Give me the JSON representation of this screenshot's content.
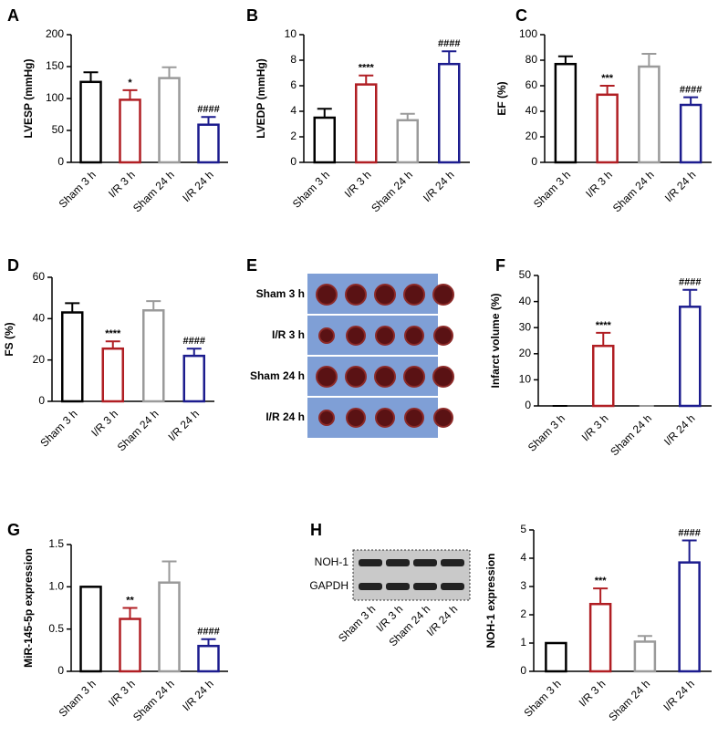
{
  "chart_data": [
    {
      "type": "bar",
      "panel": "A",
      "title": "LVESP (mmHg)",
      "categories": [
        "Sham 3 h",
        "I/R 3 h",
        "Sham 24 h",
        "I/R 24 h"
      ],
      "values": [
        126,
        98,
        132,
        59
      ],
      "errors": [
        15,
        15,
        17,
        12
      ],
      "value_annotations": [
        null,
        "*",
        null,
        "####"
      ],
      "colors": [
        "#000000",
        "#b01e23",
        "#9a9a9a",
        "#1c1c8e"
      ],
      "ylim": [
        0,
        200
      ],
      "yticks": [
        0,
        50,
        100,
        150,
        200
      ]
    },
    {
      "type": "bar",
      "panel": "B",
      "title": "LVEDP (mmHg)",
      "categories": [
        "Sham 3 h",
        "I/R 3 h",
        "Sham 24 h",
        "I/R 24 h"
      ],
      "values": [
        3.5,
        6.1,
        3.3,
        7.7
      ],
      "errors": [
        0.7,
        0.7,
        0.5,
        1.0
      ],
      "value_annotations": [
        null,
        "****",
        null,
        "####"
      ],
      "colors": [
        "#000000",
        "#b01e23",
        "#9a9a9a",
        "#1c1c8e"
      ],
      "ylim": [
        0,
        10
      ],
      "yticks": [
        0,
        2,
        4,
        6,
        8,
        10
      ]
    },
    {
      "type": "bar",
      "panel": "C",
      "title": "EF (%)",
      "categories": [
        "Sham 3 h",
        "I/R 3 h",
        "Sham 24 h",
        "I/R 24 h"
      ],
      "values": [
        77,
        53,
        75,
        45
      ],
      "errors": [
        6,
        7,
        10,
        6
      ],
      "value_annotations": [
        null,
        "***",
        null,
        "####"
      ],
      "colors": [
        "#000000",
        "#b01e23",
        "#9a9a9a",
        "#1c1c8e"
      ],
      "ylim": [
        0,
        100
      ],
      "yticks": [
        0,
        20,
        40,
        60,
        80,
        100
      ]
    },
    {
      "type": "bar",
      "panel": "D",
      "title": "FS (%)",
      "categories": [
        "Sham 3 h",
        "I/R 3 h",
        "Sham 24 h",
        "I/R 24 h"
      ],
      "values": [
        43,
        25.5,
        44,
        22
      ],
      "errors": [
        4.5,
        3.5,
        4.5,
        3.5
      ],
      "value_annotations": [
        null,
        "****",
        null,
        "####"
      ],
      "colors": [
        "#000000",
        "#b01e23",
        "#9a9a9a",
        "#1c1c8e"
      ],
      "ylim": [
        0,
        60
      ],
      "yticks": [
        0,
        20,
        40,
        60
      ]
    },
    {
      "type": "bar",
      "panel": "F",
      "title": "Infarct volume (%)",
      "categories": [
        "Sham 3 h",
        "I/R 3 h",
        "Sham 24 h",
        "I/R 24 h"
      ],
      "values": [
        0,
        23,
        0,
        38
      ],
      "errors": [
        0,
        5,
        0,
        6.5
      ],
      "value_annotations": [
        null,
        "****",
        null,
        "####"
      ],
      "colors": [
        "#000000",
        "#b01e23",
        "#9a9a9a",
        "#1c1c8e"
      ],
      "ylim": [
        0,
        50
      ],
      "yticks": [
        0,
        10,
        20,
        30,
        40,
        50
      ]
    },
    {
      "type": "bar",
      "panel": "G",
      "title": "MiR-145-5p expression",
      "categories": [
        "Sham 3 h",
        "I/R 3 h",
        "Sham 24 h",
        "I/R 24 h"
      ],
      "values": [
        1.0,
        0.62,
        1.05,
        0.3
      ],
      "errors": [
        0,
        0.13,
        0.25,
        0.08
      ],
      "value_annotations": [
        null,
        "**",
        null,
        "####"
      ],
      "colors": [
        "#000000",
        "#b01e23",
        "#9a9a9a",
        "#1c1c8e"
      ],
      "ylim": [
        0,
        1.5
      ],
      "yticks": [
        0,
        0.5,
        {
          "value": 1,
          "label": "1.0"
        },
        1.5
      ]
    },
    {
      "type": "bar",
      "panel": "H",
      "title": "NOH-1 expression",
      "categories": [
        "Sham 3 h",
        "I/R 3 h",
        "Sham 24 h",
        "I/R 24 h"
      ],
      "values": [
        1,
        2.38,
        1.05,
        3.85
      ],
      "errors": [
        0,
        0.55,
        0.2,
        0.78
      ],
      "value_annotations": [
        null,
        "***",
        null,
        "####"
      ],
      "colors": [
        "#000000",
        "#b01e23",
        "#9a9a9a",
        "#1c1c8e"
      ],
      "ylim": [
        0,
        5
      ],
      "yticks": [
        0,
        1,
        2,
        3,
        4,
        5
      ]
    }
  ],
  "photo": {
    "panel": "E",
    "rows": [
      "Sham 3 h",
      "I/R 3 h",
      "Sham 24 h",
      "I/R 24 h"
    ]
  },
  "blot": {
    "bands": [
      "NOH-1",
      "GAPDH"
    ],
    "lanes": [
      "Sham 3 h",
      "I/R 3 h",
      "Sham 24 h",
      "I/R 24 h"
    ]
  }
}
